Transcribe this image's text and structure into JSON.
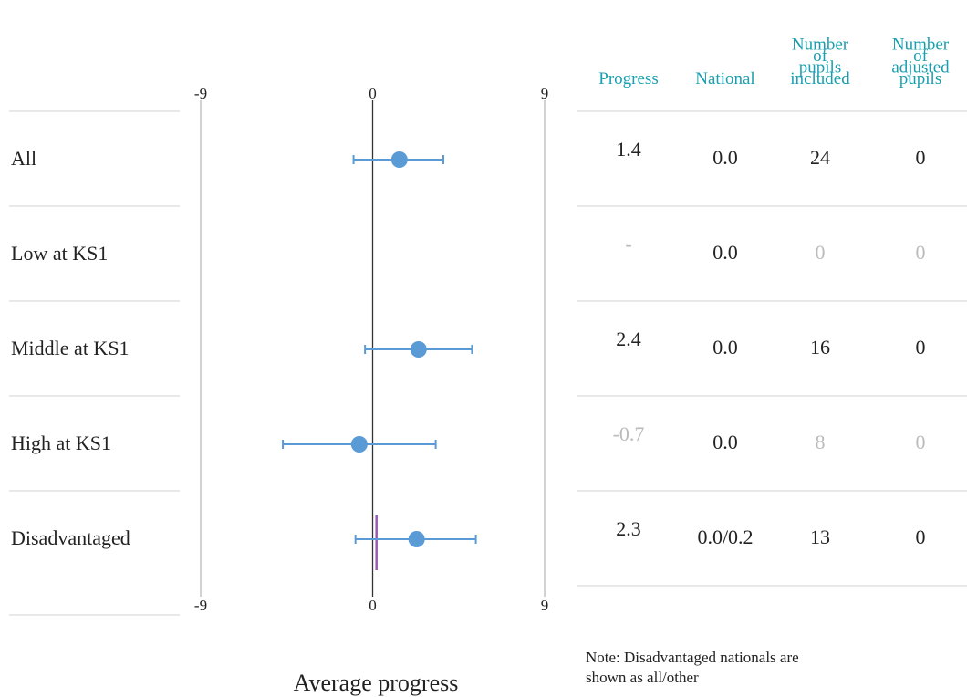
{
  "chart_data": {
    "type": "scatter",
    "xlabel": "Average progress",
    "xlim": [
      -9,
      9
    ],
    "x_ticks": [
      "-9",
      "0",
      "9"
    ],
    "categories": [
      "All",
      "Low at KS1",
      "Middle at KS1",
      "High at KS1",
      "Disadvantaged"
    ],
    "points": [
      {
        "category": "All",
        "value": 1.4,
        "ci_low": -1.0,
        "ci_high": 3.7
      },
      {
        "category": "Low at KS1",
        "value": null,
        "ci_low": null,
        "ci_high": null
      },
      {
        "category": "Middle at KS1",
        "value": 2.4,
        "ci_low": -0.4,
        "ci_high": 5.2
      },
      {
        "category": "High at KS1",
        "value": -0.7,
        "ci_low": -4.7,
        "ci_high": 3.3
      },
      {
        "category": "Disadvantaged",
        "value": 2.3,
        "ci_low": -0.9,
        "ci_high": 5.4
      }
    ],
    "national_marker": {
      "category": "Disadvantaged",
      "value": 0.2
    },
    "colors": {
      "point": "#5b9bd5",
      "national": "#9b59b6",
      "header": "#1a9fb0",
      "muted": "#bbbbbb"
    }
  },
  "table": {
    "headers": [
      [
        "Progress"
      ],
      [
        "National"
      ],
      [
        "Number",
        "of",
        "pupils",
        "included"
      ],
      [
        "Number",
        "of",
        "adjusted",
        "pupils"
      ]
    ],
    "rows": [
      [
        {
          "v": "1.4"
        },
        {
          "v": "0.0"
        },
        {
          "v": "24"
        },
        {
          "v": "0"
        }
      ],
      [
        {
          "v": "-",
          "muted": true
        },
        {
          "v": "0.0"
        },
        {
          "v": "0",
          "muted": true
        },
        {
          "v": "0",
          "muted": true
        }
      ],
      [
        {
          "v": "2.4"
        },
        {
          "v": "0.0"
        },
        {
          "v": "16"
        },
        {
          "v": "0"
        }
      ],
      [
        {
          "v": "-0.7",
          "muted": true
        },
        {
          "v": "0.0"
        },
        {
          "v": "8",
          "muted": true
        },
        {
          "v": "0",
          "muted": true
        }
      ],
      [
        {
          "v": "2.3"
        },
        {
          "v": "0.0/0.2"
        },
        {
          "v": "13"
        },
        {
          "v": "0"
        }
      ]
    ]
  },
  "note": [
    "Note: Disadvantaged nationals are",
    "shown as all/other"
  ]
}
